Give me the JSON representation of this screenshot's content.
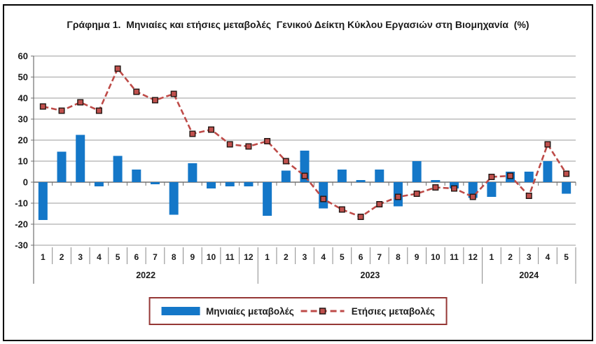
{
  "title": "Γράφημα 1.  Μηνιαίες και ετήσιες μεταβολές  Γενικού Δείκτη Κύκλου Εργασιών στη Βιομηχανία  (%)",
  "legend": [
    {
      "label": "Μηνιαίες μεταβολές",
      "type": "bar"
    },
    {
      "label": "Ετήσιες μεταβολές",
      "type": "line"
    }
  ],
  "colors": {
    "bar": "#1477C8",
    "line": "#BE4B48",
    "marker_fill": "#C0504D",
    "marker_border": "#221613",
    "grid": "#9B9B9B",
    "axis": "#707070",
    "label_separator": "#8A8A8A",
    "text": "#1A1A1A",
    "legend_border": "#953735",
    "frame_border": "#000000"
  },
  "chart_data": {
    "type": "bar",
    "subtype": "bar-line-combo",
    "title": "Γράφημα 1. Μηνιαίες και ετήσιες μεταβολές Γενικού Δείκτη Κύκλου Εργασιών στη Βιομηχανία (%)",
    "x_months": [
      "1",
      "2",
      "3",
      "4",
      "5",
      "6",
      "7",
      "8",
      "9",
      "10",
      "11",
      "12",
      "1",
      "2",
      "3",
      "4",
      "5",
      "6",
      "7",
      "8",
      "9",
      "10",
      "11",
      "12",
      "1",
      "2",
      "3",
      "4",
      "5"
    ],
    "year_groups": [
      {
        "label": "2022",
        "count": 12
      },
      {
        "label": "2023",
        "count": 12
      },
      {
        "label": "2024",
        "count": 5
      }
    ],
    "y_ticks": [
      60,
      50,
      40,
      30,
      20,
      10,
      0,
      -10,
      -20,
      -30
    ],
    "ylim": [
      -30,
      60
    ],
    "grid": true,
    "legend_position": "bottom",
    "series": [
      {
        "name": "Μηνιαίες μεταβολές",
        "type": "bar",
        "values": [
          -18,
          14.5,
          22.5,
          -2,
          12.5,
          6,
          -1,
          -15.5,
          9,
          -3,
          -2,
          -2,
          -16,
          5.5,
          15,
          -12.5,
          6,
          1,
          6,
          -11.5,
          10,
          1,
          -3,
          -7.5,
          -7,
          5,
          5,
          10,
          -5.5
        ]
      },
      {
        "name": "Ετήσιες μεταβολές",
        "type": "line",
        "line_style": "dashed",
        "marker": "square",
        "values": [
          36,
          34,
          38,
          34,
          54,
          43,
          39,
          42,
          23,
          25,
          18,
          17,
          19.5,
          10,
          3,
          -8,
          -13,
          -16.5,
          -10.5,
          -7,
          -5.5,
          -2.5,
          -3,
          -7,
          2.5,
          3,
          -6.5,
          18,
          4
        ]
      }
    ]
  }
}
